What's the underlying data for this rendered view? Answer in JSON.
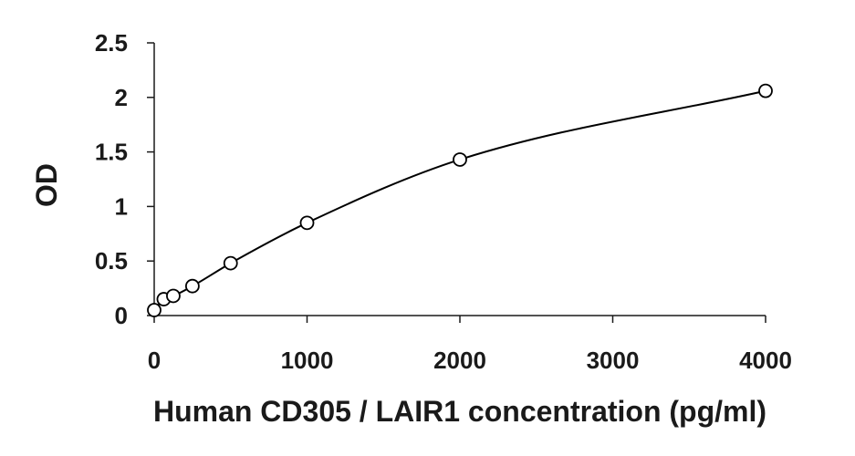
{
  "chart_data": {
    "type": "scatter",
    "title": "",
    "xlabel": "Human CD305 / LAIR1 concentration (pg/ml)",
    "ylabel": "OD",
    "xlim": [
      0,
      4000
    ],
    "ylim": [
      0,
      2.5
    ],
    "x_ticks": [
      "0",
      "1000",
      "2000",
      "3000",
      "4000"
    ],
    "y_ticks": [
      "0",
      "0.5",
      "1",
      "1.5",
      "2",
      "2.5"
    ],
    "grid": false,
    "legend": "none",
    "trendline": "smooth fitted curve through points",
    "marker": "open circle",
    "color": "#000000",
    "series": [
      {
        "x": [
          0,
          62.5,
          125,
          250,
          500,
          1000,
          2000,
          4000
        ],
        "y": [
          0.05,
          0.15,
          0.18,
          0.27,
          0.48,
          0.85,
          1.43,
          2.06
        ]
      }
    ]
  }
}
